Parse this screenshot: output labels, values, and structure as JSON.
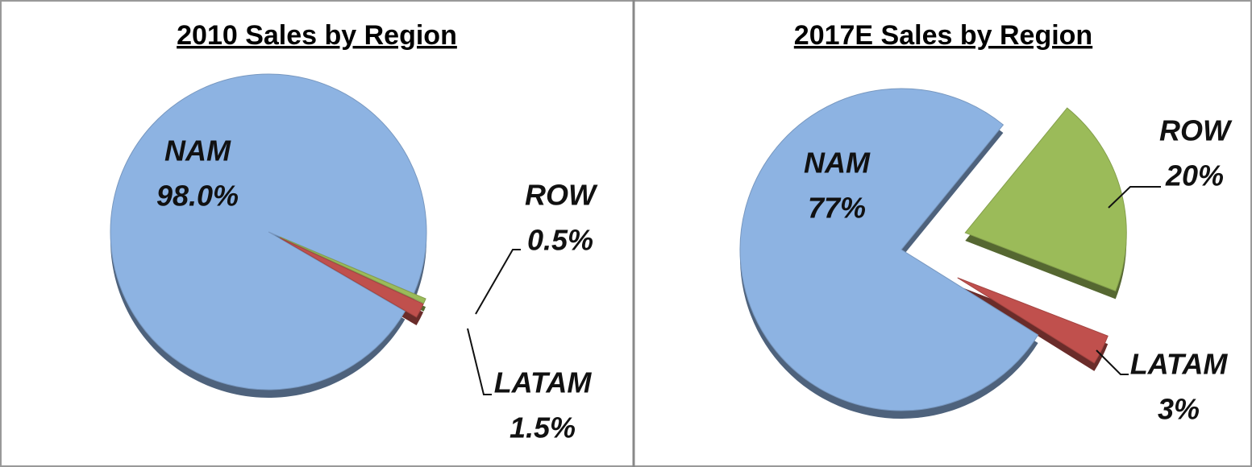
{
  "chart_data": [
    {
      "type": "pie",
      "title": "2010 Sales by Region",
      "categories": [
        "NAM",
        "ROW",
        "LATAM"
      ],
      "values": [
        98.0,
        0.5,
        1.5
      ],
      "value_labels": [
        "98.0%",
        "0.5%",
        "1.5%"
      ],
      "colors": [
        "#8db3e2",
        "#9bbb59",
        "#c0504d"
      ]
    },
    {
      "type": "pie",
      "title": "2017E Sales by Region",
      "categories": [
        "NAM",
        "ROW",
        "LATAM"
      ],
      "values": [
        77,
        20,
        3
      ],
      "value_labels": [
        "77%",
        "20%",
        "3%"
      ],
      "colors": [
        "#8db3e2",
        "#9bbb59",
        "#c0504d"
      ]
    }
  ]
}
